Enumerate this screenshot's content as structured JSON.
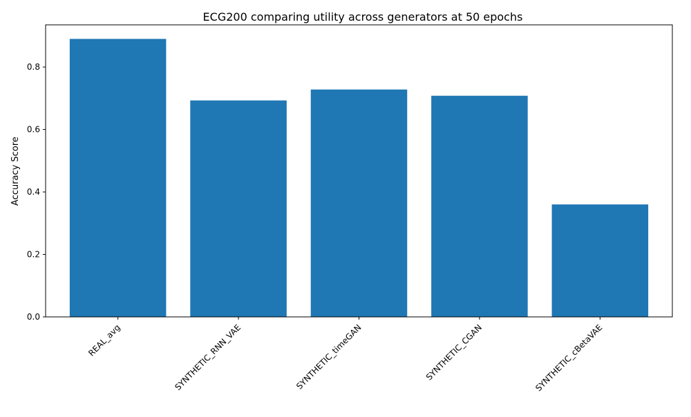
{
  "chart_data": {
    "type": "bar",
    "title": "ECG200 comparing utility across generators at 50 epochs",
    "xlabel": "",
    "ylabel": "Accuracy Score",
    "categories": [
      "REAL_avg",
      "SYNTHETIC_RNN_VAE",
      "SYNTHETIC_timeGAN",
      "SYNTHETIC_CGAN",
      "SYNTHETIC_cBetaVAE"
    ],
    "values": [
      0.89,
      0.693,
      0.728,
      0.708,
      0.36
    ],
    "ylim": [
      0,
      0.935
    ],
    "yticks": [
      0.0,
      0.2,
      0.4,
      0.6,
      0.8
    ],
    "ytick_labels": [
      "0.0",
      "0.2",
      "0.4",
      "0.6",
      "0.8"
    ],
    "grid": false,
    "bar_color": "#1f77b4"
  }
}
